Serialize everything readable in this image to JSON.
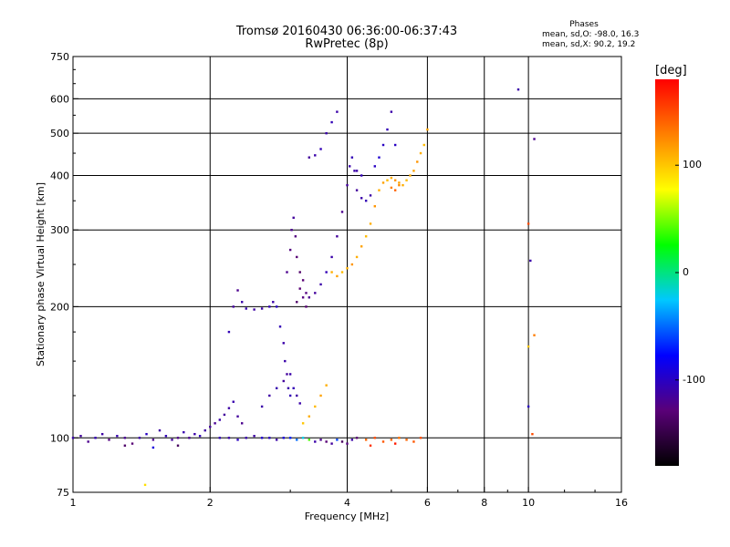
{
  "title_line1": "Tromsø 20160430 06:36:00-06:37:43",
  "title_line2": "RwPretec (8p)",
  "phase_stats": {
    "heading": "Phases",
    "o_line": "mean, sd,O: -98.0, 16.3",
    "x_line": "mean, sd,X:  90.2, 19.2"
  },
  "colorbar": {
    "unit": "[deg]",
    "ticks": [
      {
        "value": 100,
        "label": "100"
      },
      {
        "value": 0,
        "label": "0"
      },
      {
        "value": -100,
        "label": "-100"
      }
    ],
    "range": [
      -180,
      180
    ],
    "stops": [
      "#000000",
      "#5a0078",
      "#0000ff",
      "#00c8ff",
      "#00ff00",
      "#ffff00",
      "#ff8000",
      "#ff0000"
    ]
  },
  "chart_data": {
    "type": "scatter",
    "xlabel": "Frequency [MHz]",
    "ylabel": "Stationary phase Virtual Height [km]",
    "xscale": "log",
    "yscale": "log",
    "xlim": [
      1,
      16
    ],
    "ylim": [
      75,
      750
    ],
    "xticks": [
      {
        "value": 1,
        "label": "1"
      },
      {
        "value": 2,
        "label": "2"
      },
      {
        "value": 4,
        "label": "4"
      },
      {
        "value": 6,
        "label": "6"
      },
      {
        "value": 8,
        "label": "8"
      },
      {
        "value": 10,
        "label": "10"
      },
      {
        "value": 16,
        "label": "16"
      }
    ],
    "yticks": [
      {
        "value": 75,
        "label": "75"
      },
      {
        "value": 100,
        "label": "100"
      },
      {
        "value": 200,
        "label": "200"
      },
      {
        "value": 300,
        "label": "300"
      },
      {
        "value": 400,
        "label": "400"
      },
      {
        "value": 500,
        "label": "500"
      },
      {
        "value": 600,
        "label": "600"
      },
      {
        "value": 750,
        "label": "750"
      }
    ],
    "grid_x": [
      2,
      4,
      6,
      8,
      10
    ],
    "grid_y": [
      100,
      200,
      300,
      400,
      500,
      600
    ],
    "points": [
      [
        1.0,
        100,
        -110
      ],
      [
        1.04,
        101,
        -115
      ],
      [
        1.08,
        98,
        -120
      ],
      [
        1.12,
        100,
        -105
      ],
      [
        1.16,
        102,
        -112
      ],
      [
        1.2,
        99,
        -125
      ],
      [
        1.25,
        101,
        -108
      ],
      [
        1.3,
        100,
        -118
      ],
      [
        1.35,
        97,
        -130
      ],
      [
        1.4,
        100,
        -110
      ],
      [
        1.45,
        102,
        -100
      ],
      [
        1.5,
        99,
        -120
      ],
      [
        1.55,
        104,
        -112
      ],
      [
        1.6,
        101,
        -105
      ],
      [
        1.65,
        99,
        -115
      ],
      [
        1.7,
        100,
        -122
      ],
      [
        1.75,
        103,
        -108
      ],
      [
        1.8,
        100,
        -118
      ],
      [
        1.85,
        102,
        -110
      ],
      [
        1.9,
        101,
        -105
      ],
      [
        1.95,
        104,
        -112
      ],
      [
        2.0,
        106,
        -115
      ],
      [
        2.05,
        108,
        -118
      ],
      [
        2.1,
        110,
        -110
      ],
      [
        2.15,
        113,
        -115
      ],
      [
        2.2,
        117,
        -112
      ],
      [
        2.25,
        121,
        -108
      ],
      [
        2.3,
        112,
        -115
      ],
      [
        2.35,
        108,
        -120
      ],
      [
        1.3,
        96,
        -135
      ],
      [
        1.5,
        95,
        -90
      ],
      [
        1.7,
        96,
        -140
      ],
      [
        1.44,
        78,
        90
      ],
      [
        2.1,
        100,
        -105
      ],
      [
        2.2,
        100,
        -110
      ],
      [
        2.3,
        99,
        -100
      ],
      [
        2.4,
        100,
        -108
      ],
      [
        2.5,
        101,
        -112
      ],
      [
        2.6,
        100,
        -95
      ],
      [
        2.7,
        100,
        -100
      ],
      [
        2.8,
        99,
        -110
      ],
      [
        2.9,
        100,
        -90
      ],
      [
        3.0,
        100,
        -70
      ],
      [
        3.1,
        99,
        -50
      ],
      [
        3.2,
        100,
        -20
      ],
      [
        3.3,
        99,
        40
      ],
      [
        3.4,
        98,
        -110
      ],
      [
        3.5,
        99,
        -120
      ],
      [
        3.6,
        98,
        -130
      ],
      [
        3.7,
        97,
        -115
      ],
      [
        3.8,
        99,
        -60
      ],
      [
        3.9,
        98,
        -140
      ],
      [
        4.0,
        97,
        -125
      ],
      [
        4.1,
        99,
        -110
      ],
      [
        4.2,
        100,
        -130
      ],
      [
        2.2,
        175,
        -105
      ],
      [
        2.25,
        200,
        -115
      ],
      [
        2.3,
        218,
        -120
      ],
      [
        2.35,
        205,
        -110
      ],
      [
        2.4,
        198,
        -108
      ],
      [
        2.5,
        197,
        -112
      ],
      [
        2.6,
        198,
        -110
      ],
      [
        2.7,
        200,
        -105
      ],
      [
        2.75,
        205,
        -110
      ],
      [
        2.8,
        200,
        -100
      ],
      [
        2.85,
        180,
        -105
      ],
      [
        2.9,
        165,
        -110
      ],
      [
        2.92,
        150,
        -110
      ],
      [
        2.95,
        140,
        -115
      ],
      [
        2.97,
        130,
        -110
      ],
      [
        3.0,
        125,
        -105
      ],
      [
        2.6,
        118,
        -110
      ],
      [
        2.7,
        125,
        -112
      ],
      [
        2.8,
        130,
        -108
      ],
      [
        2.9,
        135,
        -115
      ],
      [
        3.0,
        140,
        -110
      ],
      [
        3.05,
        130,
        -105
      ],
      [
        3.1,
        125,
        -112
      ],
      [
        3.15,
        120,
        -110
      ],
      [
        2.95,
        240,
        -120
      ],
      [
        3.0,
        270,
        -125
      ],
      [
        3.02,
        300,
        -120
      ],
      [
        3.05,
        320,
        -115
      ],
      [
        3.08,
        290,
        -125
      ],
      [
        3.1,
        260,
        -130
      ],
      [
        3.15,
        240,
        -135
      ],
      [
        3.2,
        230,
        -130
      ],
      [
        3.25,
        215,
        -125
      ],
      [
        3.3,
        210,
        -120
      ],
      [
        3.4,
        215,
        -115
      ],
      [
        3.5,
        225,
        -110
      ],
      [
        3.6,
        240,
        -105
      ],
      [
        3.7,
        260,
        -110
      ],
      [
        3.8,
        290,
        -115
      ],
      [
        3.9,
        330,
        -120
      ],
      [
        4.0,
        380,
        -115
      ],
      [
        4.05,
        420,
        -110
      ],
      [
        4.1,
        440,
        -105
      ],
      [
        4.15,
        410,
        -110
      ],
      [
        4.2,
        370,
        -115
      ],
      [
        4.3,
        355,
        -110
      ],
      [
        4.4,
        350,
        -105
      ],
      [
        4.5,
        360,
        -110
      ],
      [
        3.15,
        220,
        -130
      ],
      [
        3.2,
        210,
        -125
      ],
      [
        3.25,
        200,
        -130
      ],
      [
        3.1,
        205,
        -135
      ],
      [
        3.3,
        440,
        -115
      ],
      [
        3.4,
        445,
        -110
      ],
      [
        3.5,
        460,
        -105
      ],
      [
        3.6,
        500,
        -110
      ],
      [
        3.7,
        530,
        -105
      ],
      [
        3.8,
        560,
        -110
      ],
      [
        4.2,
        410,
        -110
      ],
      [
        4.3,
        400,
        -105
      ],
      [
        4.6,
        420,
        -100
      ],
      [
        4.7,
        440,
        -95
      ],
      [
        4.8,
        470,
        -100
      ],
      [
        4.9,
        510,
        -105
      ],
      [
        5.0,
        560,
        -110
      ],
      [
        5.1,
        470,
        -100
      ],
      [
        3.7,
        240,
        110
      ],
      [
        3.8,
        235,
        115
      ],
      [
        3.9,
        240,
        105
      ],
      [
        4.0,
        245,
        110
      ],
      [
        4.1,
        250,
        120
      ],
      [
        4.2,
        260,
        110
      ],
      [
        4.3,
        275,
        115
      ],
      [
        4.4,
        290,
        105
      ],
      [
        4.5,
        310,
        110
      ],
      [
        4.6,
        340,
        120
      ],
      [
        4.7,
        370,
        110
      ],
      [
        4.8,
        385,
        115
      ],
      [
        4.9,
        390,
        105
      ],
      [
        5.0,
        395,
        110
      ],
      [
        5.1,
        390,
        120
      ],
      [
        5.2,
        385,
        115
      ],
      [
        5.3,
        380,
        110
      ],
      [
        5.4,
        390,
        105
      ],
      [
        5.5,
        400,
        110
      ],
      [
        5.6,
        410,
        115
      ],
      [
        5.7,
        430,
        120
      ],
      [
        5.8,
        450,
        110
      ],
      [
        5.9,
        470,
        105
      ],
      [
        6.0,
        510,
        115
      ],
      [
        5.0,
        375,
        130
      ],
      [
        5.1,
        370,
        140
      ],
      [
        5.2,
        380,
        125
      ],
      [
        3.2,
        108,
        100
      ],
      [
        3.3,
        112,
        110
      ],
      [
        3.4,
        118,
        105
      ],
      [
        3.5,
        125,
        115
      ],
      [
        3.6,
        132,
        110
      ],
      [
        4.4,
        99,
        140
      ],
      [
        4.6,
        100,
        150
      ],
      [
        4.8,
        98,
        145
      ],
      [
        5.0,
        99,
        140
      ],
      [
        5.2,
        100,
        135
      ],
      [
        5.4,
        99,
        140
      ],
      [
        5.6,
        98,
        145
      ],
      [
        5.8,
        100,
        150
      ],
      [
        4.5,
        96,
        160
      ],
      [
        5.1,
        97,
        170
      ],
      [
        9.5,
        630,
        -110
      ],
      [
        10.3,
        485,
        -120
      ],
      [
        10.0,
        310,
        150
      ],
      [
        10.1,
        255,
        -110
      ],
      [
        10.3,
        172,
        130
      ],
      [
        10.0,
        162,
        100
      ],
      [
        10.0,
        118,
        -100
      ],
      [
        10.2,
        102,
        150
      ]
    ]
  }
}
